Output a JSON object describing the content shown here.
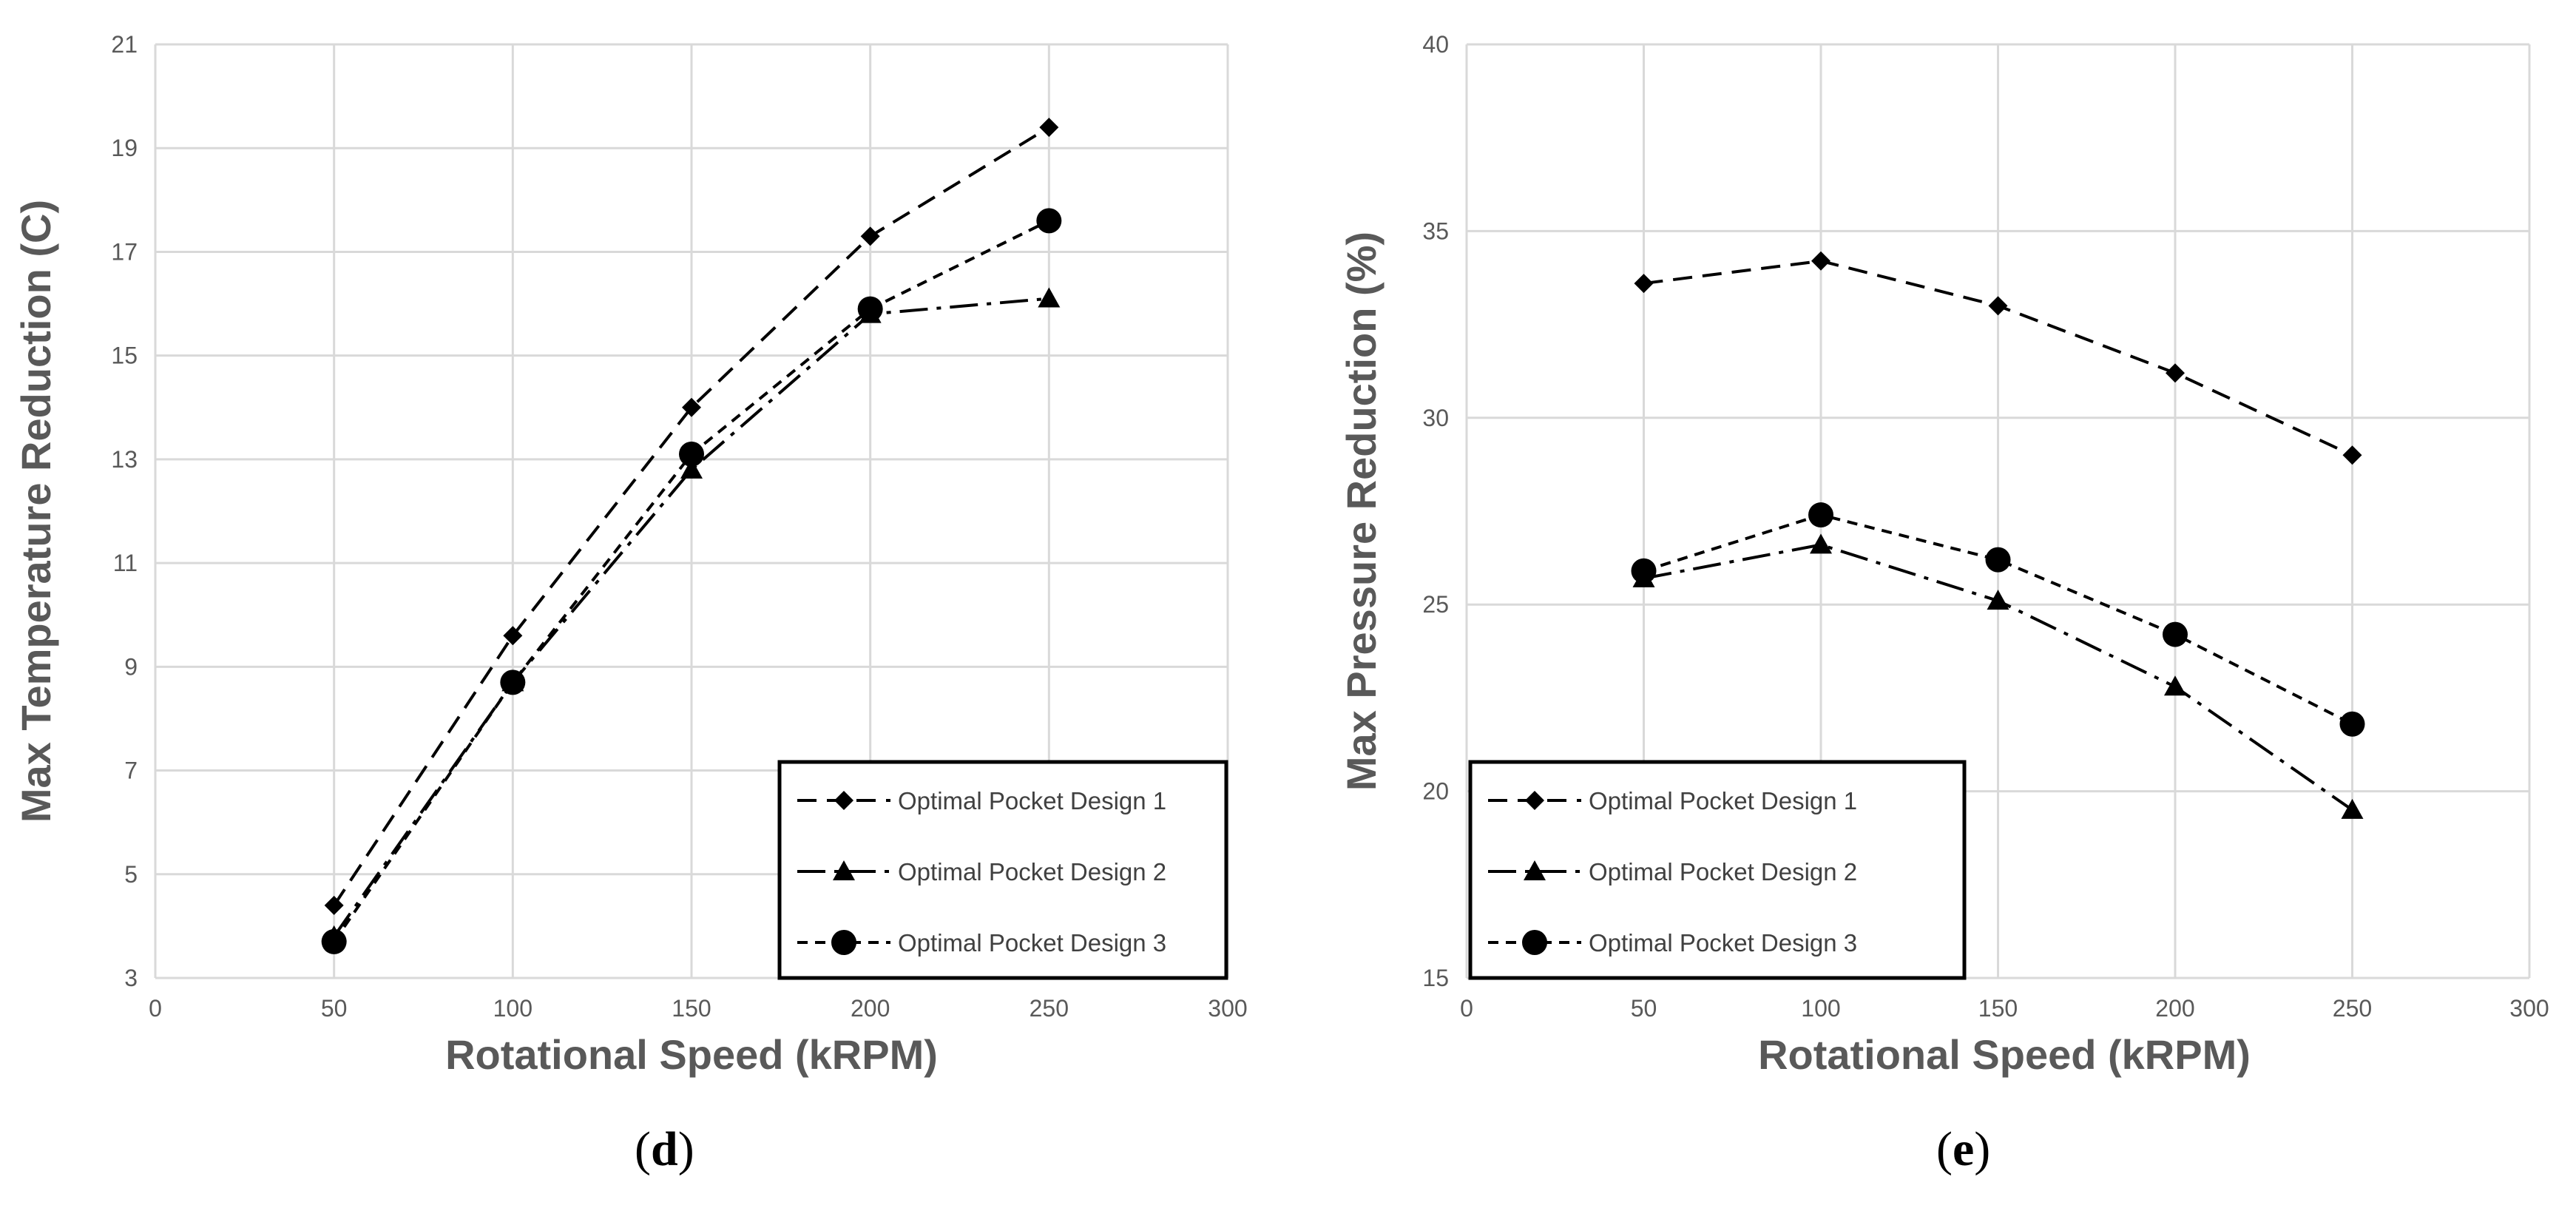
{
  "chart_data": [
    {
      "type": "line",
      "panel_label": "d",
      "xlabel": "Rotational Speed (kRPM)",
      "ylabel": "Max Temperature Reduction (C)",
      "xlim": [
        0,
        300
      ],
      "ylim": [
        3,
        21
      ],
      "x_ticks": [
        0,
        50,
        100,
        150,
        200,
        250,
        300
      ],
      "y_ticks": [
        3,
        5,
        7,
        9,
        11,
        13,
        15,
        17,
        19,
        21
      ],
      "grid": true,
      "legend_position": "bottom-right",
      "x": [
        50,
        100,
        150,
        200,
        250
      ],
      "series": [
        {
          "name": "Optimal Pocket Design 1",
          "marker": "diamond",
          "dash": "long-dash",
          "values": [
            4.4,
            9.6,
            14.0,
            17.3,
            19.4
          ]
        },
        {
          "name": "Optimal Pocket Design 2",
          "marker": "triangle",
          "dash": "dash-dot",
          "values": [
            3.8,
            8.7,
            12.8,
            15.8,
            16.1
          ]
        },
        {
          "name": "Optimal Pocket Design 3",
          "marker": "circle",
          "dash": "short-dash",
          "values": [
            3.7,
            8.7,
            13.1,
            15.9,
            17.6
          ]
        }
      ]
    },
    {
      "type": "line",
      "panel_label": "e",
      "xlabel": "Rotational Speed (kRPM)",
      "ylabel": "Max Pressure Reduction (%)",
      "xlim": [
        0,
        300
      ],
      "ylim": [
        15,
        40
      ],
      "x_ticks": [
        0,
        50,
        100,
        150,
        200,
        250,
        300
      ],
      "y_ticks": [
        15,
        20,
        25,
        30,
        35,
        40
      ],
      "grid": true,
      "legend_position": "bottom-left",
      "x": [
        50,
        100,
        150,
        200,
        250
      ],
      "series": [
        {
          "name": "Optimal Pocket Design 1",
          "marker": "diamond",
          "dash": "long-dash",
          "values": [
            33.6,
            34.2,
            33.0,
            31.2,
            29.0
          ]
        },
        {
          "name": "Optimal Pocket Design 2",
          "marker": "triangle",
          "dash": "dash-dot",
          "values": [
            25.7,
            26.6,
            25.1,
            22.8,
            19.5
          ]
        },
        {
          "name": "Optimal Pocket Design 3",
          "marker": "circle",
          "dash": "short-dash",
          "values": [
            25.9,
            27.4,
            26.2,
            24.2,
            21.8
          ]
        }
      ]
    }
  ]
}
